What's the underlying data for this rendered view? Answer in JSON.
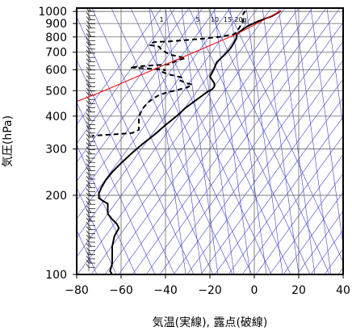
{
  "chart_data": {
    "type": "line",
    "title": "",
    "xlabel": "気温(実線), 露点(破線)",
    "ylabel": "気圧(hPa)",
    "y_scale": "log",
    "y_inverted": true,
    "xlim": [
      -80,
      40
    ],
    "ylim": [
      1030,
      100
    ],
    "grid": true,
    "x_ticks": [
      -80,
      -60,
      -40,
      -20,
      0,
      20,
      40
    ],
    "y_ticks": [
      100,
      200,
      300,
      400,
      500,
      600,
      700,
      800,
      900,
      1000
    ],
    "mixing_ratio_labels": [
      "1",
      "5",
      "10",
      "15",
      "20g"
    ],
    "colors": {
      "temperature": "#000000",
      "dewpoint": "#000000",
      "parcel": "#ff0000",
      "guide_lines": "#3f3fd0",
      "grid": "#666666"
    },
    "series": [
      {
        "role": "temperature",
        "style": "solid",
        "points": [
          [
            12,
            1005
          ],
          [
            8,
            960
          ],
          [
            2,
            920
          ],
          [
            -3,
            880
          ],
          [
            -6,
            845
          ],
          [
            -8,
            820
          ],
          [
            -8,
            790
          ],
          [
            -10,
            740
          ],
          [
            -11,
            720
          ],
          [
            -13,
            690
          ],
          [
            -15,
            665
          ],
          [
            -17,
            640
          ],
          [
            -18,
            610
          ],
          [
            -19,
            585
          ],
          [
            -20,
            565
          ],
          [
            -19,
            548
          ],
          [
            -18,
            533
          ],
          [
            -18,
            518
          ],
          [
            -19,
            506
          ],
          [
            -21,
            496
          ],
          [
            -24,
            475
          ],
          [
            -27,
            455
          ],
          [
            -31,
            430
          ],
          [
            -35,
            400
          ],
          [
            -40,
            370
          ],
          [
            -45,
            340
          ],
          [
            -50,
            315
          ],
          [
            -55,
            290
          ],
          [
            -60,
            265
          ],
          [
            -64,
            245
          ],
          [
            -67,
            228
          ],
          [
            -69,
            213
          ],
          [
            -70,
            203
          ],
          [
            -70,
            195
          ],
          [
            -68,
            190
          ],
          [
            -66,
            186
          ],
          [
            -66,
            178
          ],
          [
            -66,
            170
          ],
          [
            -64,
            162
          ],
          [
            -62,
            156
          ],
          [
            -61,
            150
          ],
          [
            -63,
            140
          ],
          [
            -64,
            128
          ],
          [
            -64,
            118
          ],
          [
            -64,
            110
          ],
          [
            -65,
            103
          ],
          [
            -64,
            100
          ]
        ]
      },
      {
        "role": "dewpoint",
        "style": "dashed",
        "points": [
          [
            -4,
            1005
          ],
          [
            -5,
            980
          ],
          [
            -5,
            950
          ],
          [
            -5,
            920
          ],
          [
            -6,
            890
          ],
          [
            -7,
            860
          ],
          [
            -9,
            820
          ],
          [
            -16,
            800
          ],
          [
            -25,
            785
          ],
          [
            -38,
            770
          ],
          [
            -45,
            765
          ],
          [
            -47,
            755
          ],
          [
            -47,
            745
          ],
          [
            -43,
            735
          ],
          [
            -42,
            720
          ],
          [
            -40,
            700
          ],
          [
            -38,
            685
          ],
          [
            -31,
            665
          ],
          [
            -35,
            650
          ],
          [
            -38,
            630
          ],
          [
            -50,
            620
          ],
          [
            -56,
            612
          ],
          [
            -45,
            605
          ],
          [
            -40,
            600
          ],
          [
            -42,
            590
          ],
          [
            -38,
            575
          ],
          [
            -33,
            562
          ],
          [
            -34,
            550
          ],
          [
            -31,
            535
          ],
          [
            -28,
            527
          ],
          [
            -30,
            515
          ],
          [
            -36,
            500
          ],
          [
            -40,
            490
          ],
          [
            -43,
            480
          ],
          [
            -45,
            470
          ],
          [
            -48,
            450
          ],
          [
            -50,
            430
          ],
          [
            -52,
            400
          ],
          [
            -52,
            375
          ],
          [
            -52,
            355
          ],
          [
            -55,
            345
          ],
          [
            -65,
            340
          ],
          [
            -73,
            337
          ]
        ]
      },
      {
        "role": "parcel",
        "style": "solid",
        "points": [
          [
            12,
            1005
          ],
          [
            -8,
            820
          ],
          [
            -70,
            490
          ],
          [
            -80,
            455
          ]
        ]
      }
    ]
  }
}
